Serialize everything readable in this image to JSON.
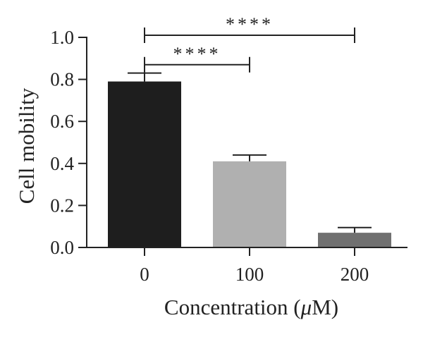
{
  "chart_data": {
    "type": "bar",
    "categories": [
      "0",
      "100",
      "200"
    ],
    "values": [
      0.79,
      0.41,
      0.07
    ],
    "errors": [
      0.04,
      0.03,
      0.025
    ],
    "colors": [
      "#1e1e1e",
      "#b0b0b0",
      "#707070"
    ],
    "xlabel_prefix": "Concentration (",
    "xlabel_unit_italic": "μ",
    "xlabel_suffix": "M)",
    "ylabel": "Cell mobility",
    "yticks": [
      "0.0",
      "0.2",
      "0.4",
      "0.6",
      "0.8",
      "1.0"
    ],
    "ylim": [
      0,
      1.0
    ],
    "grid": false,
    "significance": [
      {
        "from": "0",
        "to": "200",
        "label": "****",
        "y": 1.0
      },
      {
        "from": "0",
        "to": "100",
        "label": "****",
        "y": 0.89
      }
    ]
  }
}
